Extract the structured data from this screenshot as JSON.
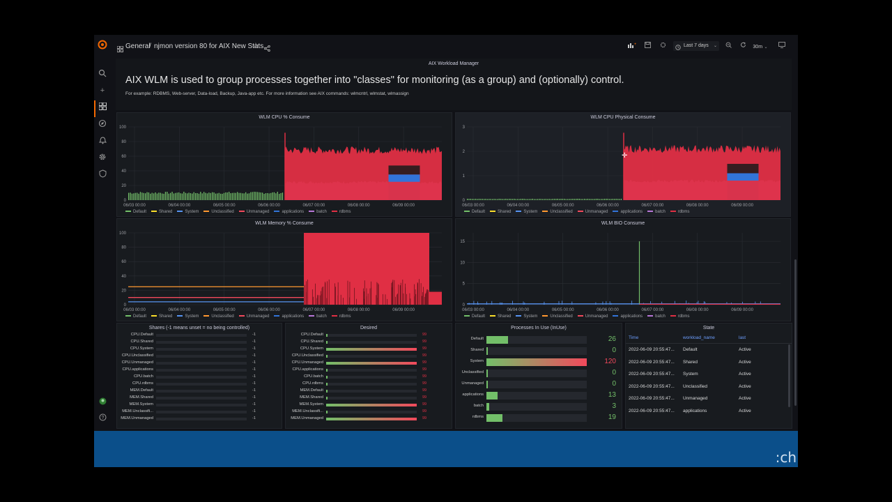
{
  "topbar": {
    "breadcrumb_root": "General",
    "breadcrumb_sep": "/",
    "breadcrumb_title": "njmon version 80 for AIX New Stats",
    "time_range": "Last 7 days",
    "refresh": "30m"
  },
  "text_panel": {
    "title": "AIX Workload Manager",
    "heading": "AIX WLM is used to group processes together into \"classes\" for monitoring (as a group) and (optionally) control.",
    "subtext": "For example: RDBMS, Web-server, Data-load, Backup, Java-app etc. For more information see AIX commands: wlmcntrl, wlmstat, wlmassign"
  },
  "legend": [
    {
      "name": "Default",
      "color": "#73bf69"
    },
    {
      "name": "Shared",
      "color": "#fade2a"
    },
    {
      "name": "System",
      "color": "#5794f2"
    },
    {
      "name": "Unclassified",
      "color": "#ff9830"
    },
    {
      "name": "Unmanaged",
      "color": "#f2495c"
    },
    {
      "name": "applications",
      "color": "#3274d9"
    },
    {
      "name": "batch",
      "color": "#b877d9"
    },
    {
      "name": "rdbms",
      "color": "#e02f44"
    }
  ],
  "chart_data": [
    {
      "type": "area",
      "title": "WLM CPU % Consume",
      "x": [
        "06/03 00:00",
        "06/04 00:00",
        "06/05 00:00",
        "06/06 00:00",
        "06/07 00:00",
        "06/08 00:00",
        "06/09 00:00"
      ],
      "yticks": [
        "0",
        "20",
        "40",
        "60",
        "80",
        "100"
      ],
      "ylim": [
        0,
        100
      ],
      "series": [
        {
          "name": "Default",
          "from": 0.0,
          "to": 0.5,
          "level": 10
        },
        {
          "name": "batch",
          "from": 0.5,
          "to": 1.0,
          "level": 25
        },
        {
          "name": "applications",
          "from": 0.83,
          "to": 0.93,
          "level": 35
        },
        {
          "name": "rdbms",
          "from": 0.5,
          "to": 1.0,
          "level": 70
        }
      ]
    },
    {
      "type": "area",
      "title": "WLM CPU Physical Consume",
      "x": [
        "06/03 00:00",
        "06/04 00:00",
        "06/05 00:00",
        "06/06 00:00",
        "06/07 00:00",
        "06/08 00:00",
        "06/09 00:00"
      ],
      "yticks": [
        "0",
        "1",
        "2",
        "3"
      ],
      "ylim": [
        0,
        3
      ],
      "series": [
        {
          "name": "Default",
          "from": 0.0,
          "to": 0.5,
          "level": 0.05
        },
        {
          "name": "batch",
          "from": 0.5,
          "to": 1.0,
          "level": 0.8
        },
        {
          "name": "applications",
          "from": 0.83,
          "to": 0.93,
          "level": 1.1
        },
        {
          "name": "rdbms",
          "from": 0.5,
          "to": 1.0,
          "level": 2.15
        }
      ]
    },
    {
      "type": "line",
      "title": "WLM Memory % Consume",
      "x": [
        "06/03 00:00",
        "06/04 00:00",
        "06/05 00:00",
        "06/06 00:00",
        "06/07 00:00",
        "06/08 00:00",
        "06/09 00:00"
      ],
      "yticks": [
        "0",
        "20",
        "40",
        "60",
        "80",
        "100"
      ],
      "ylim": [
        0,
        100
      ],
      "series": [
        {
          "name": "Unclassified",
          "from": 0.0,
          "to": 0.56,
          "level": 25
        },
        {
          "name": "Unmanaged",
          "from": 0.0,
          "to": 0.56,
          "level": 10
        },
        {
          "name": "System",
          "from": 0.0,
          "to": 1.0,
          "level": 4
        },
        {
          "name": "rdbms",
          "from": 0.56,
          "to": 0.96,
          "level": 100
        }
      ]
    },
    {
      "type": "line",
      "title": "WLM BIO Consume",
      "x": [
        "06/03 00:00",
        "06/04 00:00",
        "06/05 00:00",
        "06/06 00:00",
        "06/07 00:00",
        "06/08 00:00",
        "06/09 00:00"
      ],
      "yticks": [
        "0",
        "5",
        "10",
        "15"
      ],
      "ylim": [
        0,
        17
      ],
      "series": [
        {
          "name": "Default",
          "spike_at": 0.55,
          "level": 15
        },
        {
          "name": "System",
          "from": 0.0,
          "to": 1.0,
          "level": 0.2
        },
        {
          "name": "rdbms",
          "from": 0.55,
          "to": 1.0,
          "level": 0.1
        }
      ]
    }
  ],
  "shares": {
    "title": "Shares (-1 means unset = no being controlled)",
    "rows": [
      {
        "label": "CPU.Default",
        "value": "-1"
      },
      {
        "label": "CPU.Shared",
        "value": "-1"
      },
      {
        "label": "CPU.System",
        "value": "-1"
      },
      {
        "label": "CPU.Unclassified",
        "value": "-1"
      },
      {
        "label": "CPU.Unmanaged",
        "value": "-1"
      },
      {
        "label": "CPU.applications",
        "value": "-1"
      },
      {
        "label": "CPU.batch",
        "value": "-1"
      },
      {
        "label": "CPU.rdbms",
        "value": "-1"
      },
      {
        "label": "MEM.Default",
        "value": "-1"
      },
      {
        "label": "MEM.Shared",
        "value": "-1"
      },
      {
        "label": "MEM.System",
        "value": "-1"
      },
      {
        "label": "MEM.Unclassifi...",
        "value": "-1"
      },
      {
        "label": "MEM.Unmanaged",
        "value": "-1"
      }
    ]
  },
  "desired": {
    "title": "Desired",
    "rows": [
      {
        "label": "CPU.Default",
        "value": "99",
        "fill": 0.0
      },
      {
        "label": "CPU.Shared",
        "value": "99",
        "fill": 0.0
      },
      {
        "label": "CPU.System",
        "value": "99",
        "fill": 1.0
      },
      {
        "label": "CPU.Unclassified",
        "value": "99",
        "fill": 0.0
      },
      {
        "label": "CPU.Unmanaged",
        "value": "99",
        "fill": 1.0
      },
      {
        "label": "CPU.applications",
        "value": "99",
        "fill": 0.0
      },
      {
        "label": "CPU.batch",
        "value": "99",
        "fill": 0.0
      },
      {
        "label": "CPU.rdbms",
        "value": "99",
        "fill": 0.0
      },
      {
        "label": "MEM.Default",
        "value": "99",
        "fill": 0.0
      },
      {
        "label": "MEM.Shared",
        "value": "99",
        "fill": 0.0
      },
      {
        "label": "MEM.System",
        "value": "99",
        "fill": 1.0
      },
      {
        "label": "MEM.Unclassifi...",
        "value": "99",
        "fill": 0.0
      },
      {
        "label": "MEM.Unmanaged",
        "value": "99",
        "fill": 1.0
      }
    ]
  },
  "processes": {
    "title": "Processes In Use (InUse)",
    "max": 120,
    "rows": [
      {
        "label": "Default",
        "value": "26",
        "num": 26
      },
      {
        "label": "Shared",
        "value": "0",
        "num": 0
      },
      {
        "label": "System",
        "value": "120",
        "num": 120
      },
      {
        "label": "Unclassified",
        "value": "0",
        "num": 0
      },
      {
        "label": "Unmanaged",
        "value": "0",
        "num": 0
      },
      {
        "label": "applications",
        "value": "13",
        "num": 13
      },
      {
        "label": "batch",
        "value": "3",
        "num": 3
      },
      {
        "label": "rdbms",
        "value": "19",
        "num": 19
      }
    ]
  },
  "state": {
    "title": "State",
    "headers": [
      "Time",
      "workload_name",
      "last"
    ],
    "rows": [
      [
        "2022-06-09 20:55:47...",
        "Default",
        "Active"
      ],
      [
        "2022-06-09 20:55:47...",
        "Shared",
        "Active"
      ],
      [
        "2022-06-09 20:55:47...",
        "System",
        "Active"
      ],
      [
        "2022-06-09 20:55:47...",
        "Unclassified",
        "Active"
      ],
      [
        "2022-06-09 20:55:47...",
        "Unmanaged",
        "Active"
      ],
      [
        "2022-06-09 20:55:47...",
        "applications",
        "Active"
      ]
    ]
  },
  "colors": {
    "accent": "#f46800",
    "red": "#e02f44",
    "green": "#73bf69",
    "bottom_bar": "#0b4f8a"
  }
}
